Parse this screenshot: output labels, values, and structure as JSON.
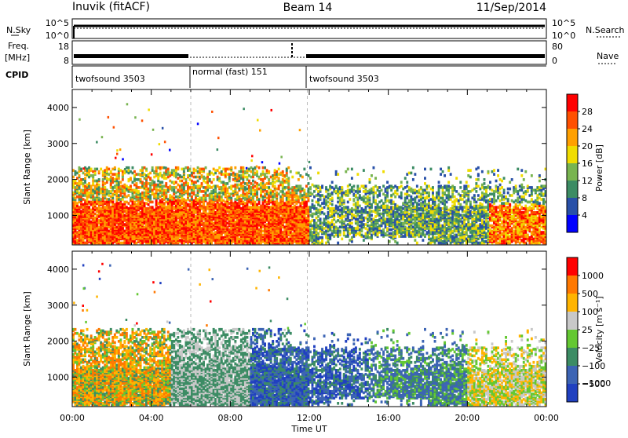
{
  "header": {
    "station": "Inuvik (fitACF)",
    "beam": "Beam 14",
    "date": "11/Sep/2014"
  },
  "left_labels": {
    "nsky": "N.Sky",
    "freq": "Freq.",
    "freq_unit": "[MHz]",
    "cpid": "CPID"
  },
  "right_labels": {
    "nsearch": "N.Search",
    "nave": "Nave"
  },
  "noise_axis": {
    "left_ticks": [
      "10^5",
      "10^0"
    ],
    "right_ticks": [
      "10^5",
      "10^0"
    ]
  },
  "freq_axis": {
    "left_ticks": [
      "18",
      "8"
    ],
    "right_ticks": [
      "80",
      "0"
    ]
  },
  "cpid_segments": [
    {
      "label": "twofsound 3503",
      "start_hour": 0,
      "end_hour": 6
    },
    {
      "label": "normal (fast) 151",
      "start_hour": 6,
      "end_hour": 11.9
    },
    {
      "label": "twofsound 3503",
      "start_hour": 11.9,
      "end_hour": 24
    }
  ],
  "power_colorbar": {
    "label": "Power [dB]",
    "ticks": [
      "28",
      "24",
      "20",
      "16",
      "12",
      "8",
      "4"
    ]
  },
  "velocity_colorbar": {
    "label": "Velocity [m s⁻¹]",
    "ticks": [
      "1000",
      "500",
      "100",
      "25",
      "−25",
      "−100",
      "−500",
      "−1000"
    ]
  },
  "colors": {
    "power": [
      "#0000ff",
      "#2850a8",
      "#3c8c64",
      "#78b450",
      "#f0dc00",
      "#ffa000",
      "#ff5000",
      "#ff0000"
    ],
    "velocity": [
      "#2040c0",
      "#3c64b4",
      "#3c8c64",
      "#64c832",
      "#c8c8c8",
      "#ffb400",
      "#ff7800",
      "#ff0000"
    ]
  },
  "chart_data": [
    {
      "type": "heatmap",
      "name": "power",
      "xlabel": "",
      "ylabel": "Slant Range [km]",
      "xlim": [
        0,
        24
      ],
      "ylim": [
        180,
        4500
      ],
      "y_ticks": [
        1000,
        2000,
        3000,
        4000
      ]
    },
    {
      "type": "heatmap",
      "name": "velocity",
      "xlabel": "Time UT",
      "ylabel": "Slant Range [km]",
      "xlim": [
        0,
        24
      ],
      "ylim": [
        180,
        4500
      ],
      "y_ticks": [
        1000,
        2000,
        3000,
        4000
      ],
      "x_ticks": [
        "00:00",
        "04:00",
        "08:00",
        "12:00",
        "16:00",
        "20:00",
        "00:00"
      ]
    }
  ]
}
